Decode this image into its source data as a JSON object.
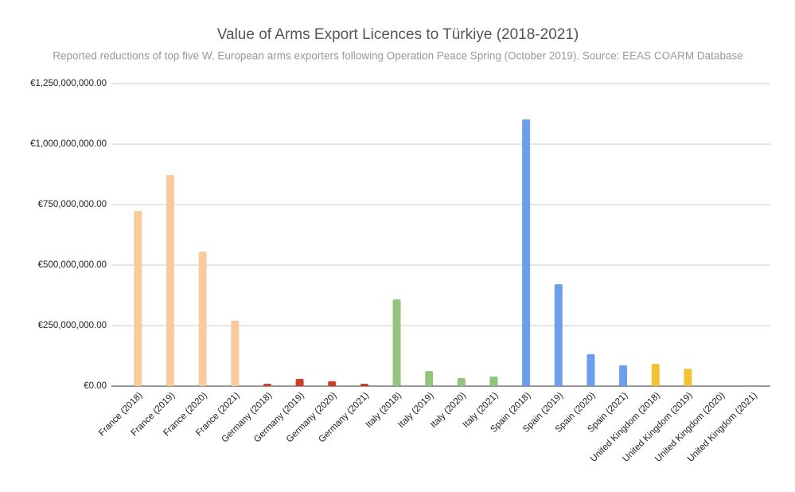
{
  "chart_data": {
    "type": "bar",
    "title": "Value of Arms Export Licences to Türkiye (2018-2021)",
    "subtitle": "Reported reductions of top five W. European arms exporters following Operation Peace Spring (October 2019). Source: EEAS COARM Database",
    "categories": [
      "France (2018)",
      "France (2019)",
      "France (2020)",
      "France (2021)",
      "Germany (2018)",
      "Germany (2019)",
      "Germany (2020)",
      "Germany (2021)",
      "Italy (2018)",
      "Italy (2019)",
      "Italy (2020)",
      "Italy (2021)",
      "Spain (2018)",
      "Spain (2019)",
      "Spain (2020)",
      "Spain (2021)",
      "United Kingdom (2018)",
      "United Kingdom (2019)",
      "United Kingdom (2020)",
      "United Kingdom (2021)"
    ],
    "values": [
      724000000,
      872000000,
      556000000,
      270000000,
      10000000,
      30000000,
      20000000,
      10000000,
      358000000,
      62000000,
      33000000,
      40000000,
      1102000000,
      421000000,
      132000000,
      86000000,
      92000000,
      72000000,
      0,
      0
    ],
    "colors": [
      "#f9cb9c",
      "#f9cb9c",
      "#f9cb9c",
      "#f9cb9c",
      "#cc4125",
      "#cc4125",
      "#cc4125",
      "#cc4125",
      "#93c47d",
      "#93c47d",
      "#93c47d",
      "#93c47d",
      "#6d9eeb",
      "#6d9eeb",
      "#6d9eeb",
      "#6d9eeb",
      "#f1c232",
      "#f1c232",
      "#f1c232",
      "#f1c232"
    ],
    "ylim": [
      0,
      1250000000
    ],
    "yticks": [
      {
        "value": 0,
        "label": "€0.00"
      },
      {
        "value": 250000000,
        "label": "€250,000,000.00"
      },
      {
        "value": 500000000,
        "label": "€500,000,000.00"
      },
      {
        "value": 750000000,
        "label": "€750,000,000.00"
      },
      {
        "value": 1000000000,
        "label": "€1,000,000,000.00"
      },
      {
        "value": 1250000000,
        "label": "€1,250,000,000.00"
      }
    ],
    "grid": true
  }
}
